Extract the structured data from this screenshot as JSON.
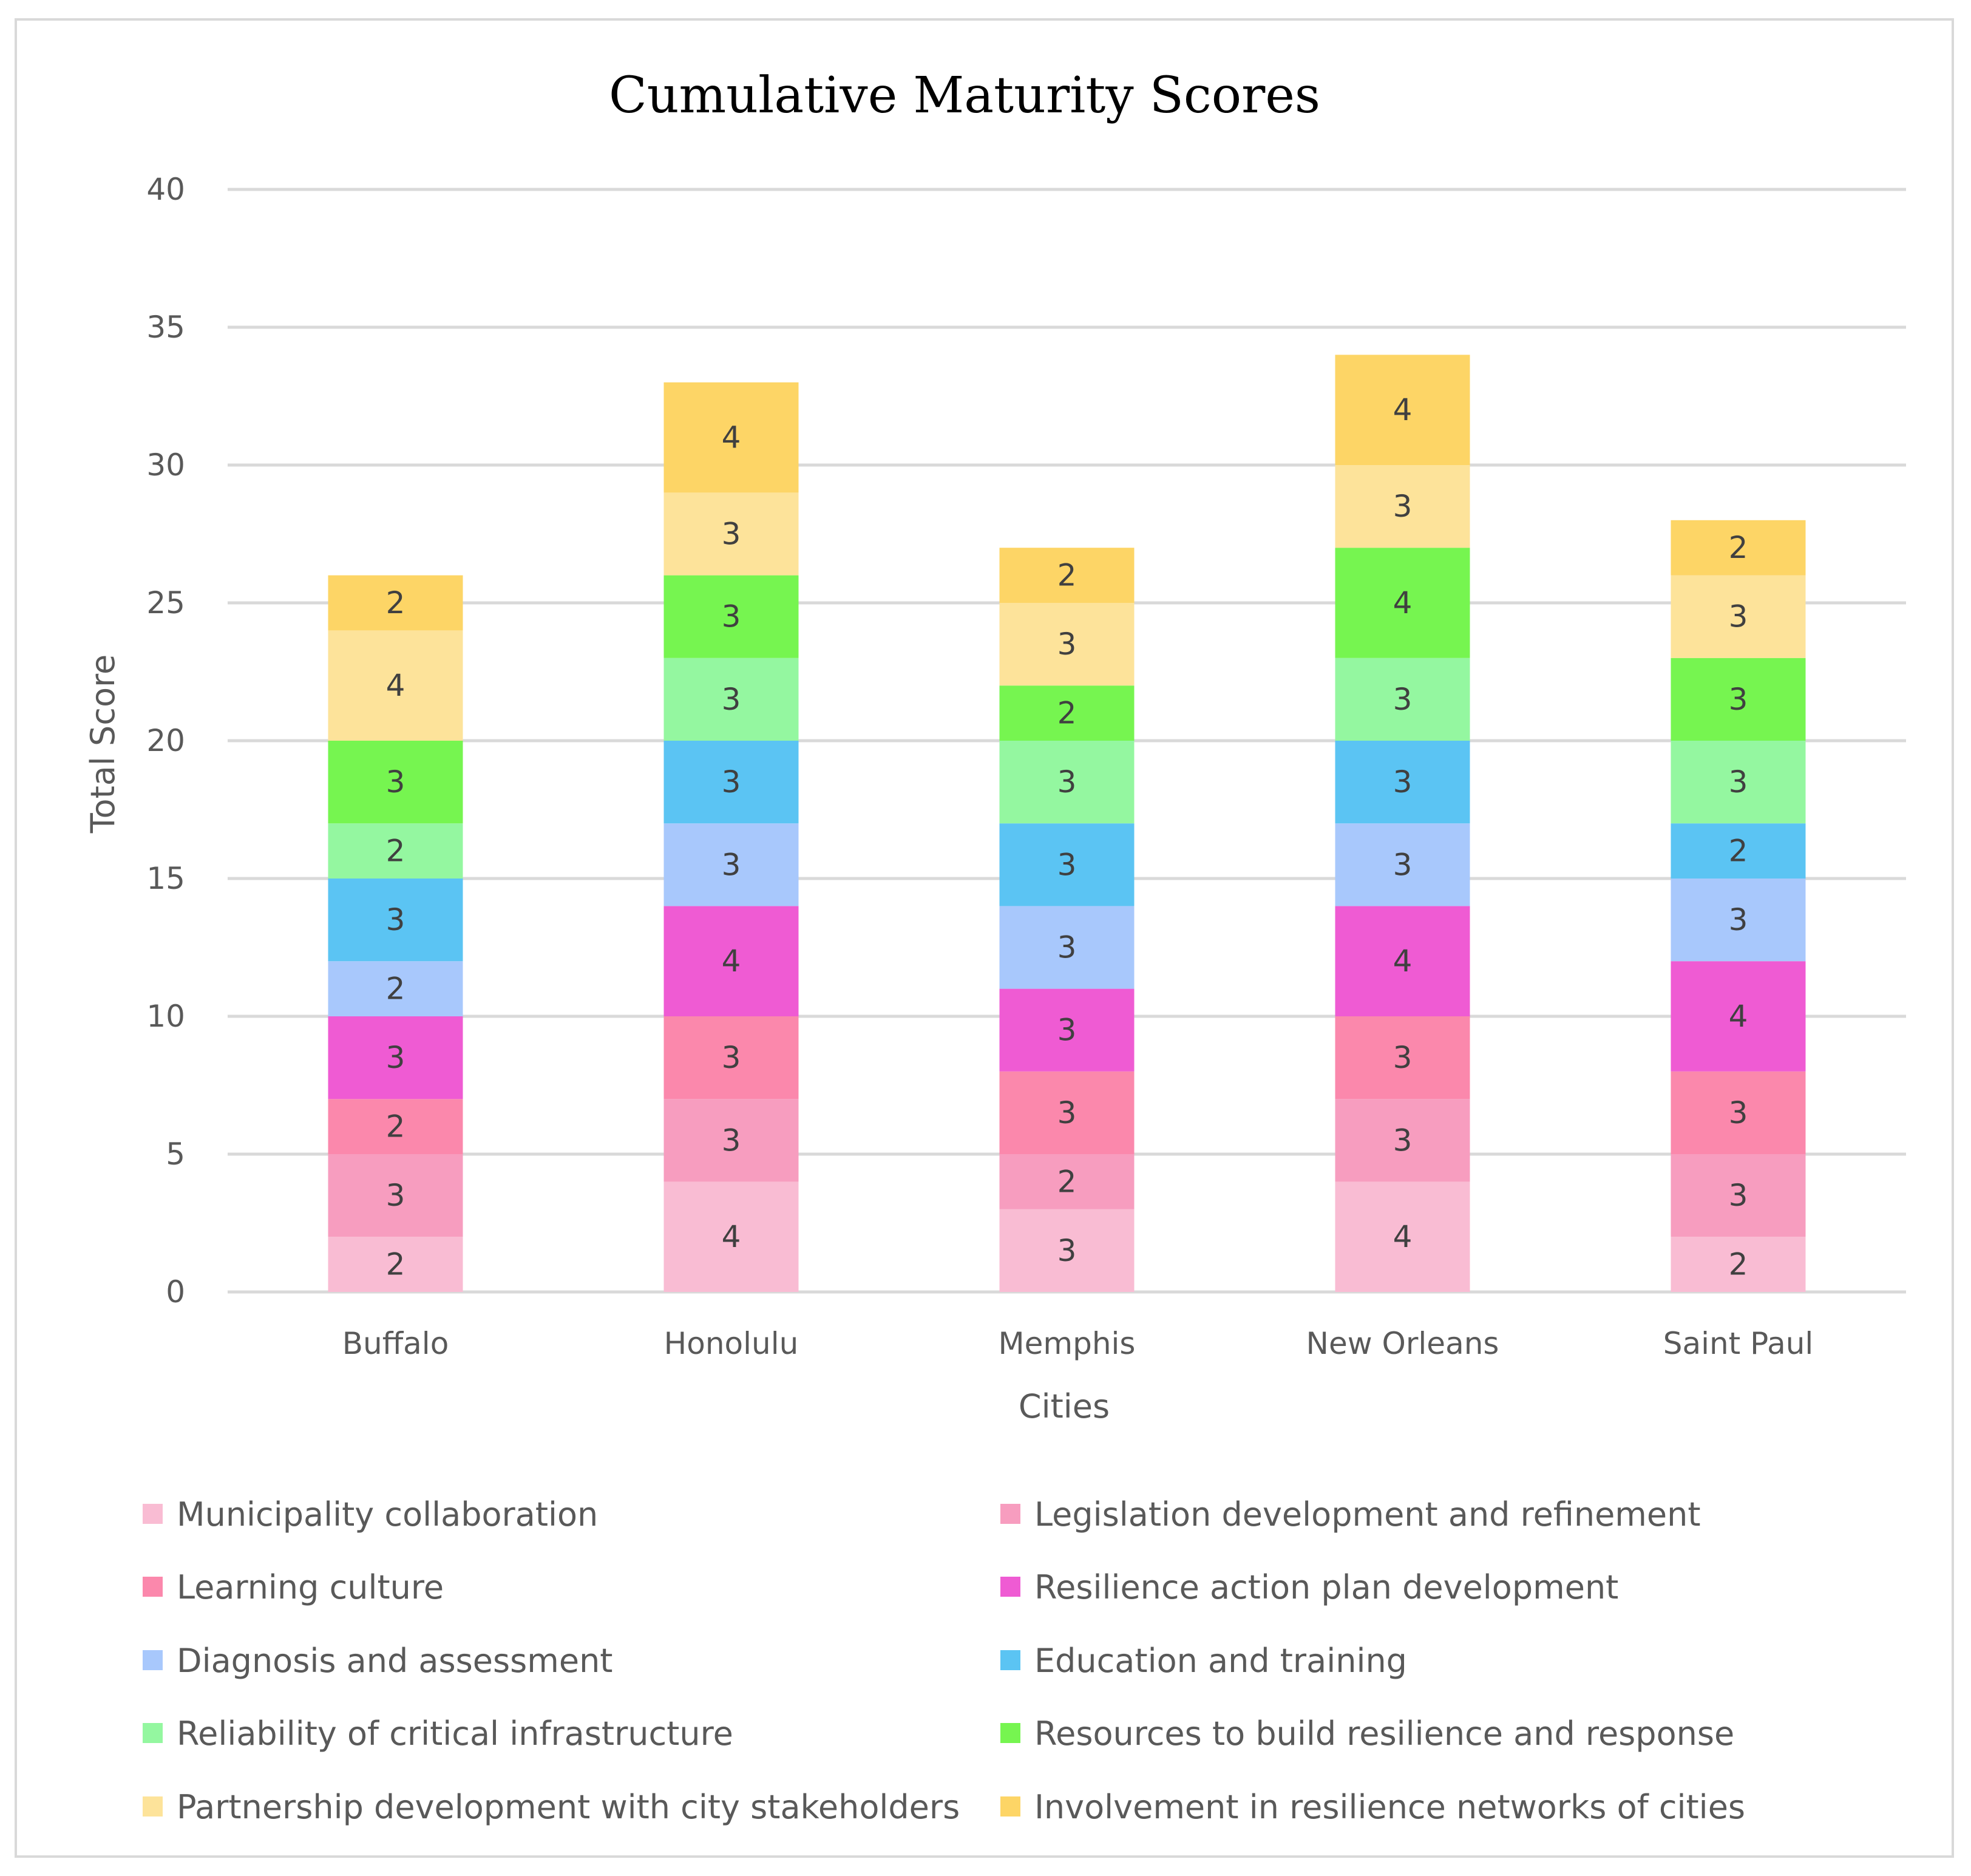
{
  "chart_data": {
    "type": "bar",
    "stacked": true,
    "title": "Cumulative Maturity Scores",
    "xlabel": "Cities",
    "ylabel": "Total Score",
    "ylim": [
      0,
      40
    ],
    "yticks": [
      "0",
      "5",
      "10",
      "15",
      "20",
      "25",
      "30",
      "35",
      "40"
    ],
    "grid": true,
    "legend_position": "bottom",
    "categories": [
      "Buffalo",
      "Honolulu",
      "Memphis",
      "New Orleans",
      "Saint Paul"
    ],
    "series": [
      {
        "name": "Municipality collaboration",
        "color": "#f9bcd3",
        "values": [
          2,
          4,
          3,
          4,
          2
        ]
      },
      {
        "name": "Legislation development and refinement",
        "color": "#f79dbf",
        "values": [
          3,
          3,
          2,
          3,
          3
        ]
      },
      {
        "name": "Learning culture",
        "color": "#fb88ac",
        "values": [
          2,
          3,
          3,
          3,
          3
        ]
      },
      {
        "name": "Resilience action plan development",
        "color": "#ef5bd3",
        "values": [
          3,
          4,
          3,
          4,
          4
        ]
      },
      {
        "name": "Diagnosis and assessment",
        "color": "#a8c8fc",
        "values": [
          2,
          3,
          3,
          3,
          3
        ]
      },
      {
        "name": "Education and training",
        "color": "#5bc4f3",
        "values": [
          3,
          3,
          3,
          3,
          2
        ]
      },
      {
        "name": "Reliability of critical infrastructure",
        "color": "#94f7a0",
        "values": [
          2,
          3,
          3,
          3,
          3
        ]
      },
      {
        "name": "Resources to build resilience and response",
        "color": "#76f550",
        "values": [
          3,
          3,
          2,
          4,
          3
        ]
      },
      {
        "name": "Partnership development with city stakeholders",
        "color": "#fde39a",
        "values": [
          4,
          3,
          3,
          3,
          3
        ]
      },
      {
        "name": "Involvement in resilience networks of cities",
        "color": "#fdd566",
        "values": [
          2,
          4,
          2,
          4,
          2
        ]
      }
    ]
  },
  "colors": {
    "gridline": "#d9d9d9",
    "frame": "#d9d9d9"
  }
}
